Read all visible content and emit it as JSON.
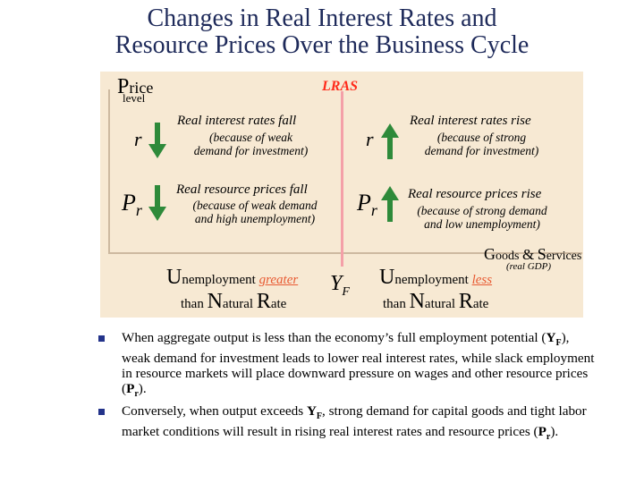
{
  "title": {
    "line1": "Changes in Real Interest Rates and",
    "line2": "Resource Prices Over the Business Cycle"
  },
  "colors": {
    "panel": "#f7e9d3",
    "arrow": "#2e8a3a",
    "lras": "#f4a0a8",
    "lras_text": "#ff2a1a",
    "highlight": "#e85a32",
    "bullet": "#23338a",
    "title": "#1e2a5a"
  },
  "diagram": {
    "y_axis": {
      "big": "P",
      "rest": "rice",
      "line2": "level"
    },
    "lras": "LRAS",
    "x_axis": {
      "g": "G",
      "oods": "oods",
      "amp": "&",
      "s": "S",
      "ervices": "ervices",
      "note": "(real GDP)"
    },
    "left": {
      "r_symbol": "r",
      "r_arrow": "down-arrow-icon",
      "r_main": "Real interest rates fall",
      "r_sub1": "(because of weak",
      "r_sub2": "demand for investment)",
      "pr_symbol": "P",
      "pr_sub": "r",
      "pr_arrow": "down-arrow-icon",
      "pr_main": "Real resource prices fall",
      "pr_sub1": "(because of weak demand",
      "pr_sub2": "and high unemployment)"
    },
    "right": {
      "r_symbol": "r",
      "r_arrow": "up-arrow-icon",
      "r_main": "Real interest rates rise",
      "r_sub1": "(because of strong",
      "r_sub2": "demand for investment)",
      "pr_symbol": "P",
      "pr_sub": "r",
      "pr_arrow": "up-arrow-icon",
      "pr_main": "Real resource prices rise",
      "pr_sub1": "(because of strong demand",
      "pr_sub2": "and low unemployment)"
    },
    "yf": {
      "main": "Y",
      "sub": "F"
    },
    "unemployment_left": {
      "u": "U",
      "rest": "nemployment ",
      "word": "greater",
      "than": "than ",
      "n": "N",
      "atural": "atural ",
      "r": "R",
      "ate": "ate"
    },
    "unemployment_right": {
      "u": "U",
      "rest": "nemployment ",
      "word": "less",
      "than": "than ",
      "n": "N",
      "atural": "atural ",
      "r": "R",
      "ate": "ate"
    }
  },
  "bullets": [
    {
      "t1": "When aggregate output is less than the economy’s full employment potential (",
      "b1": "Y",
      "b1s": "F",
      "t2": "), weak demand for investment leads to lower real interest rates, while slack employment in resource markets will place downward pressure on wages and other resource prices (",
      "b2": "P",
      "b2s": "r",
      "t3": ")."
    },
    {
      "t1": "Conversely, when output exceeds ",
      "b1": "Y",
      "b1s": "F",
      "t2": ", strong demand for capital goods and tight labor market conditions will result in rising real interest rates and resource prices (",
      "b2": "P",
      "b2s": "r",
      "t3": ")."
    }
  ]
}
